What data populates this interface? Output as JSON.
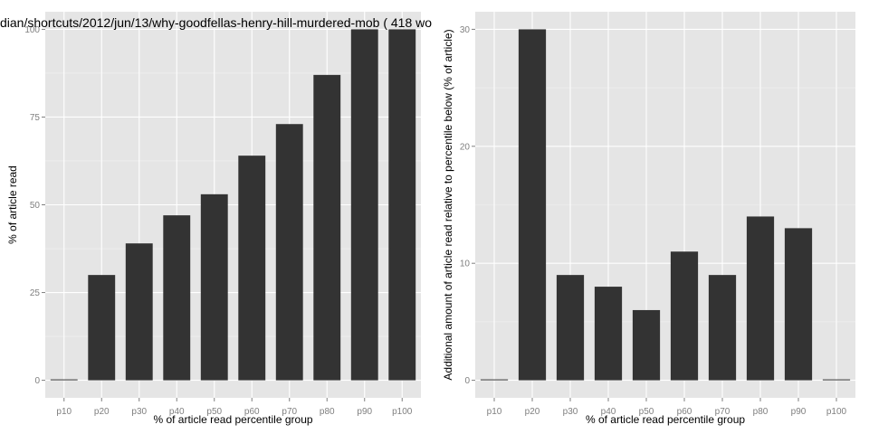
{
  "chart_data": [
    {
      "type": "bar",
      "title": "dian/shortcuts/2012/jun/13/why-goodfellas-henry-hill-murdered-mob ( 418 wo",
      "xlabel": "% of article read percentile group",
      "ylabel": "% of article read",
      "categories": [
        "p10",
        "p20",
        "p30",
        "p40",
        "p50",
        "p60",
        "p70",
        "p80",
        "p90",
        "p100"
      ],
      "values": [
        0,
        30,
        39,
        47,
        53,
        64,
        73,
        87,
        100,
        100
      ],
      "yticks": [
        0,
        25,
        50,
        75,
        100
      ],
      "ytick_labels": [
        "0",
        "25",
        "50",
        "75",
        "100"
      ],
      "ylim": [
        -5,
        105
      ],
      "grid": true
    },
    {
      "type": "bar",
      "title": "",
      "xlabel": "% of article read percentile group",
      "ylabel": "Additional amount of article read relative to percentile below (% of article)",
      "categories": [
        "p10",
        "p20",
        "p30",
        "p40",
        "p50",
        "p60",
        "p70",
        "p80",
        "p90",
        "p100"
      ],
      "values": [
        0,
        30,
        9,
        8,
        6,
        11,
        9,
        14,
        13,
        0
      ],
      "yticks": [
        0,
        10,
        20,
        30
      ],
      "ytick_labels": [
        "0",
        "10",
        "20",
        "30"
      ],
      "ylim": [
        -1.5,
        31.5
      ],
      "grid": true
    }
  ],
  "colors": {
    "panel": "#e5e5e5",
    "bar": "#333333",
    "grid": "#ffffff",
    "tick_text": "#7f7f7f"
  }
}
